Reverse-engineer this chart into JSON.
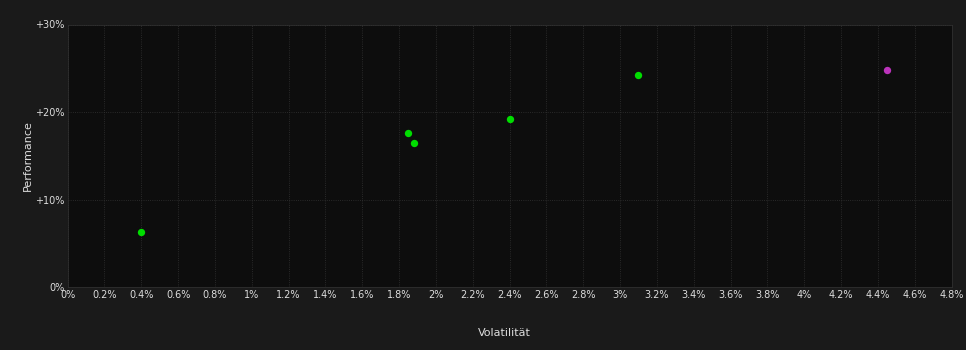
{
  "background_color": "#1a1a1a",
  "plot_bg_color": "#0d0d0d",
  "grid_color": "#333333",
  "text_color": "#dddddd",
  "xlabel": "Volatilität",
  "ylabel": "Performance",
  "xlim": [
    0.0,
    0.048
  ],
  "ylim": [
    0.0,
    0.3
  ],
  "xtick_values": [
    0.0,
    0.002,
    0.004,
    0.006,
    0.008,
    0.01,
    0.012,
    0.014,
    0.016,
    0.018,
    0.02,
    0.022,
    0.024,
    0.026,
    0.028,
    0.03,
    0.032,
    0.034,
    0.036,
    0.038,
    0.04,
    0.042,
    0.044,
    0.046,
    0.048
  ],
  "xtick_labels": [
    "0%",
    "0.2%",
    "0.4%",
    "0.6%",
    "0.8%",
    "1%",
    "1.2%",
    "1.4%",
    "1.6%",
    "1.8%",
    "2%",
    "2.2%",
    "2.4%",
    "2.6%",
    "2.8%",
    "3%",
    "3.2%",
    "3.4%",
    "3.6%",
    "3.8%",
    "4%",
    "4.2%",
    "4.4%",
    "4.6%",
    "4.8%"
  ],
  "ytick_values": [
    0.0,
    0.1,
    0.2,
    0.3
  ],
  "ytick_labels": [
    "0%",
    "+10%",
    "+20%",
    "+30%"
  ],
  "points_green": [
    [
      0.004,
      0.063
    ],
    [
      0.0185,
      0.176
    ],
    [
      0.0188,
      0.165
    ],
    [
      0.024,
      0.192
    ],
    [
      0.031,
      0.242
    ]
  ],
  "points_magenta": [
    [
      0.0445,
      0.248
    ]
  ],
  "green_color": "#00dd00",
  "magenta_color": "#bb33bb",
  "marker_size": 28,
  "font_size_ticks": 7,
  "font_size_label": 8
}
